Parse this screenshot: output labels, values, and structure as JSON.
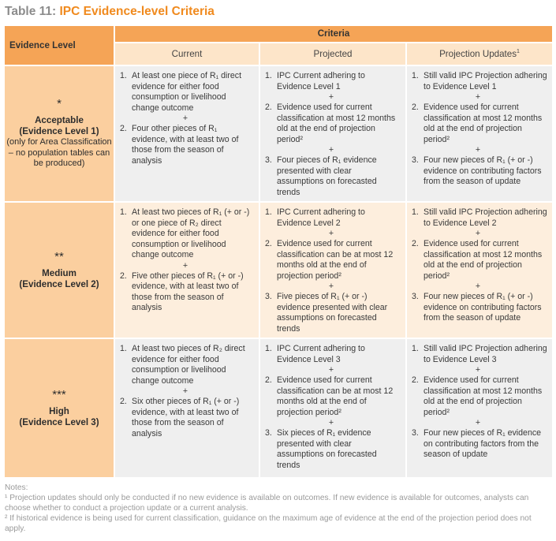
{
  "title": {
    "number": "Table 11:",
    "name": "IPC Evidence-level Criteria"
  },
  "header": {
    "evidence_level": "Evidence Level",
    "criteria": "Criteria",
    "columns": [
      "Current",
      "Projected",
      "Projection Updates"
    ]
  },
  "rows": [
    {
      "stars": "*",
      "name": "Acceptable",
      "subtitle": "(Evidence Level 1)",
      "note": "(only for Area Classification – no population tables can be produced)",
      "current": [
        {
          "n": "1.",
          "text": "At least one piece of R₁ direct evidence for either food consumption or livelihood change outcome"
        },
        {
          "n": "2.",
          "text": "Four other pieces of R₁ evidence, with at least two of those from the season of analysis"
        }
      ],
      "projected": [
        {
          "n": "1.",
          "text": "IPC Current adhering to Evidence Level 1"
        },
        {
          "n": "2.",
          "text": "Evidence used for current classification at most 12 months old at the end of projection period²"
        },
        {
          "n": "3.",
          "text": "Four pieces of R₁ evidence presented with clear assumptions on forecasted trends"
        }
      ],
      "updates": [
        {
          "n": "1.",
          "text": "Still valid IPC Projection adhering to Evidence Level 1"
        },
        {
          "n": "2.",
          "text": "Evidence used for current classification at most 12 months old at the end of projection period²"
        },
        {
          "n": "3.",
          "text": "Four new pieces of R₁ (+ or -) evidence on contributing factors from the season of update"
        }
      ]
    },
    {
      "stars": "**",
      "name": "Medium",
      "subtitle": "(Evidence Level 2)",
      "note": "",
      "current": [
        {
          "n": "1.",
          "text": "At least two pieces of R₁ (+ or -) or one piece of R₂ direct evidence for either food consumption or livelihood change outcome"
        },
        {
          "n": "2.",
          "text": "Five other pieces of R₁ (+ or -) evidence, with at least two of those from the season of analysis"
        }
      ],
      "projected": [
        {
          "n": "1.",
          "text": "IPC Current adhering to Evidence Level 2"
        },
        {
          "n": "2.",
          "text": "Evidence used for current classification can be at most 12 months old at the end of projection period²"
        },
        {
          "n": "3.",
          "text": "Five pieces of R₁ (+ or -) evidence presented with clear assumptions on forecasted trends"
        }
      ],
      "updates": [
        {
          "n": "1.",
          "text": "Still valid IPC Projection adhering to Evidence Level 2"
        },
        {
          "n": "2.",
          "text": "Evidence used for current classification at most 12 months old at the end of projection period²"
        },
        {
          "n": "3.",
          "text": "Four new pieces of R₁ (+ or -) evidence on contributing factors from the season of update"
        }
      ]
    },
    {
      "stars": "***",
      "name": "High",
      "subtitle": "(Evidence Level 3)",
      "note": "",
      "current": [
        {
          "n": "1.",
          "text": "At least two pieces of R₂ direct evidence for either food consumption or livelihood change outcome"
        },
        {
          "n": "2.",
          "text": "Six other pieces of R₁ (+ or -) evidence, with at least two of those from the season of analysis"
        }
      ],
      "projected": [
        {
          "n": "1.",
          "text": "IPC Current adhering to Evidence Level 3"
        },
        {
          "n": "2.",
          "text": "Evidence used for current classification can be at most 12 months old at the end of projection period²"
        },
        {
          "n": "3.",
          "text": "Six pieces of R₁ evidence presented with clear assumptions on forecasted trends"
        }
      ],
      "updates": [
        {
          "n": "1.",
          "text": "Still valid IPC Projection adhering to Evidence Level 3"
        },
        {
          "n": "2.",
          "text": "Evidence used for current classification at most 12 months old at the end of projection period²"
        },
        {
          "n": "3.",
          "text": "Four new pieces of R₁ evidence on contributing factors from the season of update"
        }
      ]
    }
  ],
  "notes": {
    "heading": "Notes:",
    "items": [
      "¹ Projection updates should only be conducted if no new evidence is available on outcomes. If new evidence is available for outcomes, analysts can choose whether to conduct a projection update or a current analysis.",
      "² If historical evidence is being used for current classification, guidance on the maximum age of evidence at the end of the projection period does not apply."
    ]
  },
  "plus_sign": "+",
  "colors": {
    "title_accent": "#f08a1e",
    "header_orange": "#f5a456",
    "subheader": "#fde5c9",
    "level_cell": "#fbcf9f",
    "row_gray": "#efefef",
    "row_peach": "#fdeedd"
  }
}
